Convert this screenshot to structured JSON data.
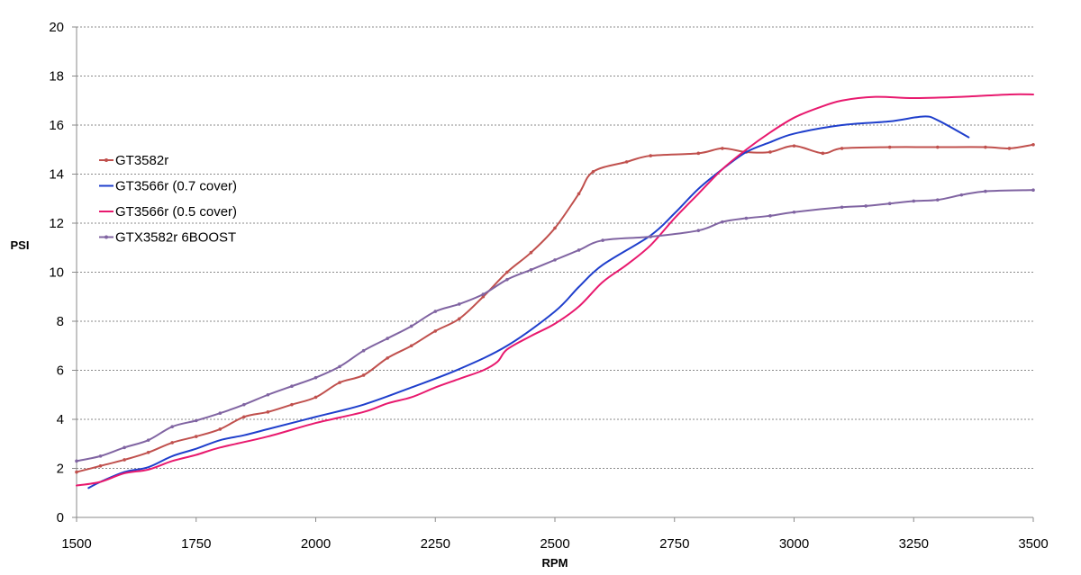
{
  "chart_data": {
    "type": "line",
    "title": "",
    "xlabel": "RPM",
    "ylabel": "PSI",
    "xlim": [
      1500,
      3500
    ],
    "ylim": [
      0,
      20
    ],
    "xticks": [
      1500,
      1750,
      2000,
      2250,
      2500,
      2750,
      3000,
      3250,
      3500
    ],
    "yticks": [
      0,
      2,
      4,
      6,
      8,
      10,
      12,
      14,
      16,
      18,
      20
    ],
    "grid": "horizontal dotted",
    "legend_position": "left",
    "series": [
      {
        "name": "GT3582r",
        "color": "#C0504D",
        "markers": true,
        "points": [
          [
            1500,
            1.85
          ],
          [
            1550,
            2.1
          ],
          [
            1600,
            2.35
          ],
          [
            1650,
            2.65
          ],
          [
            1700,
            3.05
          ],
          [
            1750,
            3.3
          ],
          [
            1800,
            3.6
          ],
          [
            1850,
            4.1
          ],
          [
            1900,
            4.3
          ],
          [
            1950,
            4.6
          ],
          [
            2000,
            4.9
          ],
          [
            2050,
            5.5
          ],
          [
            2100,
            5.8
          ],
          [
            2150,
            6.5
          ],
          [
            2200,
            7.0
          ],
          [
            2250,
            7.6
          ],
          [
            2300,
            8.1
          ],
          [
            2350,
            9.0
          ],
          [
            2400,
            10.0
          ],
          [
            2450,
            10.8
          ],
          [
            2500,
            11.8
          ],
          [
            2550,
            13.2
          ],
          [
            2580,
            14.1
          ],
          [
            2650,
            14.5
          ],
          [
            2700,
            14.75
          ],
          [
            2800,
            14.85
          ],
          [
            2850,
            15.05
          ],
          [
            2900,
            14.9
          ],
          [
            2950,
            14.9
          ],
          [
            3000,
            15.15
          ],
          [
            3060,
            14.85
          ],
          [
            3100,
            15.05
          ],
          [
            3200,
            15.1
          ],
          [
            3300,
            15.1
          ],
          [
            3400,
            15.1
          ],
          [
            3450,
            15.05
          ],
          [
            3500,
            15.2
          ]
        ]
      },
      {
        "name": "GT3566r (0.7 cover)",
        "color": "#1F3FCC",
        "markers": false,
        "points": [
          [
            1525,
            1.2
          ],
          [
            1550,
            1.45
          ],
          [
            1600,
            1.85
          ],
          [
            1650,
            2.05
          ],
          [
            1700,
            2.5
          ],
          [
            1750,
            2.8
          ],
          [
            1800,
            3.15
          ],
          [
            1850,
            3.35
          ],
          [
            1900,
            3.6
          ],
          [
            2000,
            4.1
          ],
          [
            2100,
            4.6
          ],
          [
            2200,
            5.3
          ],
          [
            2300,
            6.05
          ],
          [
            2400,
            7.0
          ],
          [
            2500,
            8.4
          ],
          [
            2550,
            9.4
          ],
          [
            2600,
            10.3
          ],
          [
            2700,
            11.5
          ],
          [
            2750,
            12.4
          ],
          [
            2800,
            13.4
          ],
          [
            2850,
            14.2
          ],
          [
            2900,
            14.9
          ],
          [
            2950,
            15.3
          ],
          [
            3000,
            15.65
          ],
          [
            3100,
            16.0
          ],
          [
            3200,
            16.15
          ],
          [
            3270,
            16.35
          ],
          [
            3300,
            16.2
          ],
          [
            3365,
            15.5
          ]
        ]
      },
      {
        "name": "GT3566r (0.5 cover)",
        "color": "#E8196E",
        "markers": false,
        "points": [
          [
            1500,
            1.3
          ],
          [
            1550,
            1.45
          ],
          [
            1600,
            1.8
          ],
          [
            1650,
            1.95
          ],
          [
            1700,
            2.3
          ],
          [
            1750,
            2.55
          ],
          [
            1800,
            2.85
          ],
          [
            1900,
            3.3
          ],
          [
            2000,
            3.85
          ],
          [
            2100,
            4.3
          ],
          [
            2150,
            4.65
          ],
          [
            2200,
            4.9
          ],
          [
            2250,
            5.3
          ],
          [
            2300,
            5.65
          ],
          [
            2350,
            6.0
          ],
          [
            2380,
            6.35
          ],
          [
            2400,
            6.85
          ],
          [
            2450,
            7.4
          ],
          [
            2500,
            7.9
          ],
          [
            2550,
            8.6
          ],
          [
            2600,
            9.6
          ],
          [
            2650,
            10.3
          ],
          [
            2700,
            11.1
          ],
          [
            2750,
            12.2
          ],
          [
            2800,
            13.2
          ],
          [
            2850,
            14.2
          ],
          [
            2900,
            15.0
          ],
          [
            2950,
            15.7
          ],
          [
            3000,
            16.3
          ],
          [
            3050,
            16.7
          ],
          [
            3100,
            17.0
          ],
          [
            3170,
            17.15
          ],
          [
            3250,
            17.1
          ],
          [
            3350,
            17.15
          ],
          [
            3450,
            17.25
          ],
          [
            3500,
            17.25
          ]
        ]
      },
      {
        "name": "GTX3582r 6BOOST",
        "color": "#8064A2",
        "markers": true,
        "points": [
          [
            1500,
            2.3
          ],
          [
            1550,
            2.5
          ],
          [
            1600,
            2.85
          ],
          [
            1650,
            3.15
          ],
          [
            1700,
            3.7
          ],
          [
            1750,
            3.95
          ],
          [
            1800,
            4.25
          ],
          [
            1850,
            4.6
          ],
          [
            1900,
            5.0
          ],
          [
            1950,
            5.35
          ],
          [
            2000,
            5.7
          ],
          [
            2050,
            6.15
          ],
          [
            2100,
            6.8
          ],
          [
            2150,
            7.3
          ],
          [
            2200,
            7.8
          ],
          [
            2250,
            8.4
          ],
          [
            2300,
            8.7
          ],
          [
            2350,
            9.1
          ],
          [
            2400,
            9.7
          ],
          [
            2450,
            10.1
          ],
          [
            2500,
            10.5
          ],
          [
            2550,
            10.9
          ],
          [
            2600,
            11.3
          ],
          [
            2700,
            11.45
          ],
          [
            2800,
            11.7
          ],
          [
            2850,
            12.05
          ],
          [
            2900,
            12.2
          ],
          [
            2950,
            12.3
          ],
          [
            3000,
            12.45
          ],
          [
            3100,
            12.65
          ],
          [
            3150,
            12.7
          ],
          [
            3200,
            12.8
          ],
          [
            3250,
            12.9
          ],
          [
            3300,
            12.95
          ],
          [
            3350,
            13.15
          ],
          [
            3400,
            13.3
          ],
          [
            3500,
            13.35
          ]
        ]
      }
    ]
  }
}
